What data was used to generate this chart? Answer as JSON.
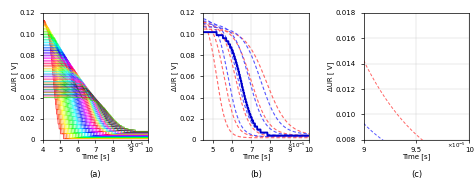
{
  "title_a": "(a)",
  "title_b": "(b)",
  "title_c": "(c)",
  "ylabel_a": "ΔUR [ V]",
  "ylabel_b": "ΔUR [ V]",
  "ylabel_c": "ΔUR [ V]",
  "xlabel": "Time [s]",
  "panel_a": {
    "xlim": [
      4e-05,
      0.0001
    ],
    "ylim": [
      0,
      0.12
    ],
    "xtick_vals": [
      4e-05,
      5e-05,
      6e-05,
      7e-05,
      8e-05,
      9e-05,
      0.0001
    ],
    "xtick_labels": [
      "4",
      "5",
      "6",
      "7",
      "8",
      "9",
      "10"
    ],
    "ytick_vals": [
      0,
      0.02,
      0.04,
      0.06,
      0.08,
      0.1,
      0.12
    ],
    "ytick_labels": [
      "0",
      "0.02",
      "0.04",
      "0.06",
      "0.08",
      "0.10",
      "0.12"
    ],
    "n_series": 50
  },
  "panel_b": {
    "xlim": [
      4.5e-05,
      0.0001
    ],
    "ylim": [
      0,
      0.12
    ],
    "xtick_vals": [
      5e-05,
      6e-05,
      7e-05,
      8e-05,
      9e-05,
      0.0001
    ],
    "xtick_labels": [
      "5",
      "6",
      "7",
      "8",
      "9",
      "10"
    ],
    "ytick_vals": [
      0,
      0.02,
      0.04,
      0.06,
      0.08,
      0.1,
      0.12
    ],
    "ytick_labels": [
      "0",
      "0.02",
      "0.04",
      "0.06",
      "0.08",
      "0.10",
      "0.12"
    ]
  },
  "panel_c": {
    "xlim": [
      9e-05,
      0.0001
    ],
    "ylim": [
      0.008,
      0.018
    ],
    "xtick_vals": [
      9e-05,
      9.5e-05,
      0.0001
    ],
    "xtick_labels": [
      "9",
      "9.5",
      "10"
    ],
    "ytick_vals": [
      0.008,
      0.01,
      0.012,
      0.014,
      0.016,
      0.018
    ],
    "ytick_labels": [
      "0.008",
      "0.010",
      "0.012",
      "0.014",
      "0.016",
      "0.018"
    ]
  },
  "blue_solid_color": "#0000cc",
  "blue_dashed_color": "#4444ff",
  "red_dashed_color": "#ff5555"
}
